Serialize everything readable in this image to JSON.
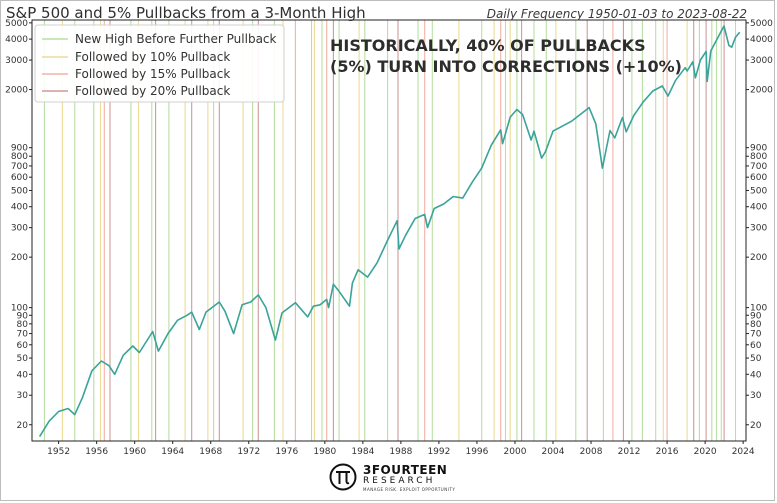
{
  "title": "S&P 500 and 5% Pullbacks from a 3-Month High",
  "subtitle": "Daily Frequency 1950-01-03 to 2023-08-22",
  "annotation": [
    "HISTORICALLY, 40% OF PULLBACKS",
    "(5%) TURN INTO CORRECTIONS (+10%)"
  ],
  "logo": {
    "name": "3FOURTEEN",
    "sub": "RESEARCH",
    "tagline": "MANAGE RISK. EXPLOIT OPPORTUNITY"
  },
  "colors": {
    "price": "#3aa39a",
    "new_high": "#b9dfa4",
    "pullback_10": "#ecdc98",
    "pullback_15": "#f2b3a8",
    "pullback_20": "#cf9a9a"
  },
  "chart_data": {
    "type": "line",
    "title": "S&P 500 and 5% Pullbacks from a 3-Month High",
    "x_range": [
      1949.2,
      2024.3
    ],
    "y_scale": "log",
    "ylim": [
      16,
      5200
    ],
    "x_ticks": [
      "1952",
      "1956",
      "1960",
      "1964",
      "1968",
      "1972",
      "1976",
      "1980",
      "1984",
      "1988",
      "1992",
      "1996",
      "2000",
      "2004",
      "2008",
      "2012",
      "2016",
      "2020",
      "2024"
    ],
    "y_ticks": [
      {
        "v": 20,
        "label": "20"
      },
      {
        "v": 30,
        "label": "30"
      },
      {
        "v": 40,
        "label": "40"
      },
      {
        "v": 50,
        "label": "50"
      },
      {
        "v": 60,
        "label": "60"
      },
      {
        "v": 70,
        "label": "70"
      },
      {
        "v": 80,
        "label": "80"
      },
      {
        "v": 90,
        "label": "90"
      },
      {
        "v": 100,
        "label": "100"
      },
      {
        "v": 200,
        "label": "200"
      },
      {
        "v": 300,
        "label": "300"
      },
      {
        "v": 400,
        "label": "400"
      },
      {
        "v": 500,
        "label": "500"
      },
      {
        "v": 600,
        "label": "600"
      },
      {
        "v": 700,
        "label": "700"
      },
      {
        "v": 800,
        "label": "800"
      },
      {
        "v": 900,
        "label": "900"
      },
      {
        "v": 2000,
        "label": "2000"
      },
      {
        "v": 3000,
        "label": "3000"
      },
      {
        "v": 4000,
        "label": "4000"
      },
      {
        "v": 5000,
        "label": "5000"
      }
    ],
    "legend": {
      "placement": "top-left",
      "entries": [
        {
          "key": "new_high",
          "label": "New High Before Further Pullback"
        },
        {
          "key": "pullback_10",
          "label": "Followed by 10% Pullback"
        },
        {
          "key": "pullback_15",
          "label": "Followed by 15% Pullback"
        },
        {
          "key": "pullback_20",
          "label": "Followed by 20% Pullback"
        }
      ]
    },
    "price_series": {
      "name": "S&P 500",
      "points": [
        [
          1950.0,
          17
        ],
        [
          1951.0,
          21
        ],
        [
          1952.0,
          24
        ],
        [
          1953.0,
          25
        ],
        [
          1953.7,
          23
        ],
        [
          1954.5,
          29
        ],
        [
          1955.5,
          42
        ],
        [
          1956.5,
          48
        ],
        [
          1957.3,
          45
        ],
        [
          1957.9,
          40
        ],
        [
          1958.8,
          52
        ],
        [
          1959.8,
          59
        ],
        [
          1960.5,
          54
        ],
        [
          1961.9,
          72
        ],
        [
          1962.5,
          55
        ],
        [
          1963.5,
          70
        ],
        [
          1964.5,
          84
        ],
        [
          1965.5,
          90
        ],
        [
          1966.0,
          94
        ],
        [
          1966.8,
          74
        ],
        [
          1967.5,
          94
        ],
        [
          1968.9,
          108
        ],
        [
          1969.5,
          95
        ],
        [
          1970.4,
          70
        ],
        [
          1971.3,
          104
        ],
        [
          1972.2,
          108
        ],
        [
          1973.0,
          119
        ],
        [
          1973.8,
          100
        ],
        [
          1974.8,
          64
        ],
        [
          1975.5,
          93
        ],
        [
          1976.9,
          107
        ],
        [
          1978.2,
          88
        ],
        [
          1978.8,
          102
        ],
        [
          1979.5,
          104
        ],
        [
          1980.2,
          112
        ],
        [
          1980.4,
          100
        ],
        [
          1980.9,
          138
        ],
        [
          1981.5,
          125
        ],
        [
          1982.6,
          102
        ],
        [
          1982.9,
          140
        ],
        [
          1983.5,
          168
        ],
        [
          1984.5,
          152
        ],
        [
          1985.5,
          185
        ],
        [
          1986.5,
          245
        ],
        [
          1987.6,
          330
        ],
        [
          1987.8,
          224
        ],
        [
          1988.5,
          270
        ],
        [
          1989.5,
          340
        ],
        [
          1990.5,
          360
        ],
        [
          1990.8,
          300
        ],
        [
          1991.5,
          390
        ],
        [
          1992.5,
          415
        ],
        [
          1993.5,
          460
        ],
        [
          1994.5,
          450
        ],
        [
          1995.5,
          560
        ],
        [
          1996.5,
          680
        ],
        [
          1997.5,
          930
        ],
        [
          1998.5,
          1150
        ],
        [
          1998.7,
          950
        ],
        [
          1999.5,
          1370
        ],
        [
          2000.2,
          1520
        ],
        [
          2000.8,
          1420
        ],
        [
          2001.7,
          1000
        ],
        [
          2002.0,
          1130
        ],
        [
          2002.8,
          780
        ],
        [
          2003.2,
          850
        ],
        [
          2004.0,
          1130
        ],
        [
          2005.0,
          1210
        ],
        [
          2006.0,
          1300
        ],
        [
          2007.0,
          1440
        ],
        [
          2007.8,
          1560
        ],
        [
          2008.5,
          1250
        ],
        [
          2009.2,
          680
        ],
        [
          2010.0,
          1140
        ],
        [
          2010.5,
          1030
        ],
        [
          2011.3,
          1360
        ],
        [
          2011.7,
          1120
        ],
        [
          2012.5,
          1400
        ],
        [
          2013.5,
          1690
        ],
        [
          2014.5,
          1960
        ],
        [
          2015.5,
          2100
        ],
        [
          2016.1,
          1830
        ],
        [
          2016.9,
          2270
        ],
        [
          2017.9,
          2700
        ],
        [
          2018.1,
          2580
        ],
        [
          2018.7,
          2930
        ],
        [
          2018.98,
          2350
        ],
        [
          2019.5,
          3000
        ],
        [
          2020.1,
          3380
        ],
        [
          2020.22,
          2240
        ],
        [
          2020.6,
          3400
        ],
        [
          2021.0,
          3750
        ],
        [
          2021.99,
          4790
        ],
        [
          2022.5,
          3670
        ],
        [
          2022.8,
          3580
        ],
        [
          2023.2,
          4100
        ],
        [
          2023.64,
          4400
        ]
      ]
    },
    "pullback_markers": [
      {
        "year": 1950.5,
        "class": "new_high"
      },
      {
        "year": 1952.4,
        "class": "pullback_10"
      },
      {
        "year": 1953.7,
        "class": "new_high"
      },
      {
        "year": 1955.7,
        "class": "new_high"
      },
      {
        "year": 1956.4,
        "class": "pullback_10"
      },
      {
        "year": 1956.8,
        "class": "pullback_15"
      },
      {
        "year": 1957.4,
        "class": "pullback_20"
      },
      {
        "year": 1959.6,
        "class": "new_high"
      },
      {
        "year": 1960.4,
        "class": "pullback_10"
      },
      {
        "year": 1961.8,
        "class": "new_high"
      },
      {
        "year": 1962.2,
        "class": "pullback_20"
      },
      {
        "year": 1963.6,
        "class": "new_high"
      },
      {
        "year": 1965.3,
        "class": "pullback_10"
      },
      {
        "year": 1966.0,
        "class": "pullback_20"
      },
      {
        "year": 1967.7,
        "class": "pullback_10"
      },
      {
        "year": 1968.3,
        "class": "new_high"
      },
      {
        "year": 1968.9,
        "class": "pullback_20"
      },
      {
        "year": 1971.4,
        "class": "pullback_10"
      },
      {
        "year": 1972.4,
        "class": "new_high"
      },
      {
        "year": 1973.0,
        "class": "pullback_20"
      },
      {
        "year": 1974.7,
        "class": "new_high"
      },
      {
        "year": 1975.6,
        "class": "pullback_10"
      },
      {
        "year": 1976.9,
        "class": "pullback_15"
      },
      {
        "year": 1978.6,
        "class": "new_high"
      },
      {
        "year": 1978.9,
        "class": "pullback_10"
      },
      {
        "year": 1979.7,
        "class": "new_high"
      },
      {
        "year": 1980.2,
        "class": "pullback_15"
      },
      {
        "year": 1980.9,
        "class": "pullback_20"
      },
      {
        "year": 1981.5,
        "class": "new_high"
      },
      {
        "year": 1983.6,
        "class": "pullback_10"
      },
      {
        "year": 1984.2,
        "class": "new_high"
      },
      {
        "year": 1986.6,
        "class": "new_high"
      },
      {
        "year": 1987.7,
        "class": "pullback_20"
      },
      {
        "year": 1989.8,
        "class": "new_high"
      },
      {
        "year": 1990.5,
        "class": "pullback_15"
      },
      {
        "year": 1991.3,
        "class": "new_high"
      },
      {
        "year": 1994.1,
        "class": "pullback_10"
      },
      {
        "year": 1996.5,
        "class": "new_high"
      },
      {
        "year": 1997.8,
        "class": "pullback_10"
      },
      {
        "year": 1998.5,
        "class": "pullback_15"
      },
      {
        "year": 1999.0,
        "class": "new_high"
      },
      {
        "year": 1999.5,
        "class": "pullback_10"
      },
      {
        "year": 2000.2,
        "class": "new_high"
      },
      {
        "year": 2000.7,
        "class": "pullback_20"
      },
      {
        "year": 2002.0,
        "class": "new_high"
      },
      {
        "year": 2003.3,
        "class": "new_high"
      },
      {
        "year": 2004.3,
        "class": "pullback_10"
      },
      {
        "year": 2006.4,
        "class": "new_high"
      },
      {
        "year": 2007.6,
        "class": "pullback_20"
      },
      {
        "year": 2009.3,
        "class": "new_high"
      },
      {
        "year": 2010.3,
        "class": "pullback_15"
      },
      {
        "year": 2011.4,
        "class": "pullback_20"
      },
      {
        "year": 2012.3,
        "class": "new_high"
      },
      {
        "year": 2013.4,
        "class": "new_high"
      },
      {
        "year": 2014.8,
        "class": "new_high"
      },
      {
        "year": 2015.6,
        "class": "pullback_10"
      },
      {
        "year": 2016.0,
        "class": "pullback_15"
      },
      {
        "year": 2018.1,
        "class": "pullback_10"
      },
      {
        "year": 2018.8,
        "class": "pullback_20"
      },
      {
        "year": 2019.4,
        "class": "new_high"
      },
      {
        "year": 2020.1,
        "class": "pullback_20"
      },
      {
        "year": 2020.7,
        "class": "new_high"
      },
      {
        "year": 2021.2,
        "class": "new_high"
      },
      {
        "year": 2021.7,
        "class": "new_high"
      },
      {
        "year": 2022.0,
        "class": "pullback_20"
      },
      {
        "year": 2023.2,
        "class": "new_high"
      }
    ]
  }
}
